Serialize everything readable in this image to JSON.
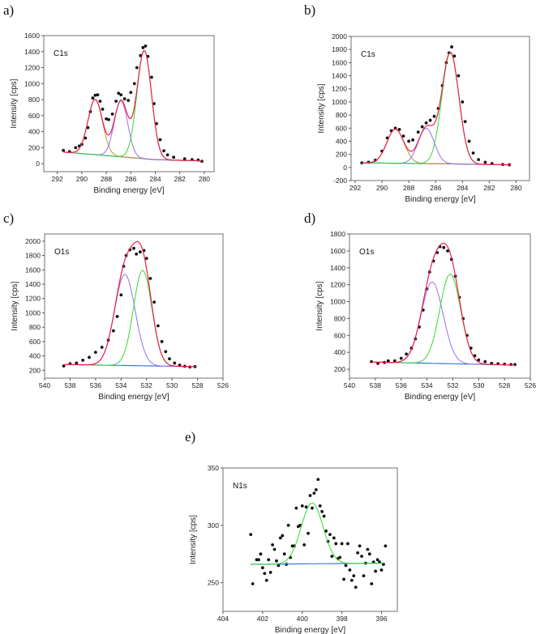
{
  "colors": {
    "envelope": "#e8204a",
    "baseline": "#3a7fd0",
    "points": "#111111",
    "frame": "#888888"
  },
  "chart_data": [
    {
      "type": "line+scatter",
      "panel_label": "a)",
      "region": "C1s",
      "xlabel": "Binding energy [eV]",
      "ylabel": "Intensity [cps]",
      "xlim": [
        293.1,
        279.2
      ],
      "ylim": [
        -100,
        1600
      ],
      "x_ticks": [
        292,
        290,
        288,
        286,
        284,
        282,
        280
      ],
      "y_ticks": [
        0,
        200,
        400,
        600,
        800,
        1000,
        1200,
        1400,
        1600
      ],
      "baseline": [
        [
          291.5,
          145
        ],
        [
          284,
          50
        ],
        [
          280.2,
          35
        ]
      ],
      "components": [
        {
          "center": 288.9,
          "height": 690,
          "fwhm": 1.4,
          "color": "#c8932a"
        },
        {
          "center": 286.8,
          "height": 700,
          "fwhm": 1.3,
          "color": "#9b6cf0"
        },
        {
          "center": 284.9,
          "height": 1350,
          "fwhm": 1.4,
          "color": "#35d935"
        }
      ],
      "envelope": true,
      "points": [
        [
          291.5,
          165
        ],
        [
          291,
          150
        ],
        [
          290.5,
          200
        ],
        [
          290.2,
          220
        ],
        [
          290,
          240
        ],
        [
          289.7,
          320
        ],
        [
          289.5,
          450
        ],
        [
          289.3,
          650
        ],
        [
          289.1,
          820
        ],
        [
          288.9,
          855
        ],
        [
          288.7,
          860
        ],
        [
          288.5,
          780
        ],
        [
          288.3,
          680
        ],
        [
          288,
          560
        ],
        [
          287.8,
          550
        ],
        [
          287.5,
          620
        ],
        [
          287.2,
          780
        ],
        [
          287,
          880
        ],
        [
          286.8,
          860
        ],
        [
          286.5,
          810
        ],
        [
          286.2,
          790
        ],
        [
          286,
          890
        ],
        [
          285.7,
          1000
        ],
        [
          285.5,
          1200
        ],
        [
          285.2,
          1350
        ],
        [
          285,
          1450
        ],
        [
          284.8,
          1470
        ],
        [
          284.6,
          1340
        ],
        [
          284.3,
          1080
        ],
        [
          284.1,
          750
        ],
        [
          283.9,
          500
        ],
        [
          283.6,
          300
        ],
        [
          283.3,
          160
        ],
        [
          283,
          110
        ],
        [
          282.5,
          80
        ],
        [
          281.6,
          60
        ],
        [
          281,
          50
        ],
        [
          280.5,
          45
        ],
        [
          280.2,
          30
        ]
      ]
    },
    {
      "type": "line+scatter",
      "panel_label": "b)",
      "region": "C1s",
      "xlabel": "Binding energy [eV]",
      "ylabel": "Intensity [cps]",
      "xlim": [
        292.3,
        279.0
      ],
      "ylim": [
        -200,
        2000
      ],
      "x_ticks": [
        292,
        290,
        288,
        286,
        284,
        282,
        280
      ],
      "y_ticks": [
        -200,
        0,
        200,
        400,
        600,
        800,
        1000,
        1200,
        1400,
        1600,
        1800,
        2000
      ],
      "baseline": [
        [
          291.5,
          70
        ],
        [
          285,
          55
        ],
        [
          280.4,
          40
        ]
      ],
      "components": [
        {
          "center": 289.0,
          "height": 520,
          "fwhm": 1.5,
          "color": "#c8932a"
        },
        {
          "center": 286.7,
          "height": 540,
          "fwhm": 1.4,
          "color": "#9b6cf0"
        },
        {
          "center": 284.9,
          "height": 1700,
          "fwhm": 1.5,
          "color": "#35d935"
        }
      ],
      "envelope": true,
      "points": [
        [
          291.5,
          70
        ],
        [
          291,
          80
        ],
        [
          290.5,
          110
        ],
        [
          290,
          250
        ],
        [
          289.6,
          450
        ],
        [
          289.3,
          560
        ],
        [
          289,
          600
        ],
        [
          288.7,
          580
        ],
        [
          288.4,
          480
        ],
        [
          288,
          400
        ],
        [
          287.7,
          420
        ],
        [
          287.3,
          540
        ],
        [
          287,
          620
        ],
        [
          286.7,
          680
        ],
        [
          286.4,
          720
        ],
        [
          286.1,
          780
        ],
        [
          285.8,
          900
        ],
        [
          285.5,
          1250
        ],
        [
          285.2,
          1600
        ],
        [
          285,
          1750
        ],
        [
          284.8,
          1840
        ],
        [
          284.6,
          1700
        ],
        [
          284.3,
          1400
        ],
        [
          284,
          1000
        ],
        [
          283.8,
          700
        ],
        [
          283.5,
          400
        ],
        [
          283.2,
          220
        ],
        [
          282.8,
          120
        ],
        [
          282.3,
          80
        ],
        [
          281.8,
          60
        ],
        [
          281,
          45
        ],
        [
          280.5,
          40
        ]
      ]
    },
    {
      "type": "line+scatter",
      "panel_label": "c)",
      "region": "O1s",
      "xlabel": "Binding energy [eV]",
      "ylabel": "Intensity [cps]",
      "xlim": [
        540,
        526
      ],
      "ylim": [
        90,
        2100
      ],
      "x_ticks": [
        540,
        538,
        536,
        534,
        532,
        530,
        528,
        526
      ],
      "y_ticks": [
        200,
        400,
        600,
        800,
        1000,
        1200,
        1400,
        1600,
        1800,
        2000
      ],
      "baseline": [
        [
          538.5,
          280
        ],
        [
          528.2,
          250
        ]
      ],
      "components": [
        {
          "center": 533.7,
          "height": 1270,
          "fwhm": 1.9,
          "color": "#9b6cf0"
        },
        {
          "center": 532.3,
          "height": 1330,
          "fwhm": 1.7,
          "color": "#35d935"
        }
      ],
      "envelope": true,
      "points": [
        [
          538.5,
          260
        ],
        [
          538,
          290
        ],
        [
          537.5,
          300
        ],
        [
          537,
          340
        ],
        [
          536.5,
          380
        ],
        [
          536,
          450
        ],
        [
          535.5,
          520
        ],
        [
          535,
          620
        ],
        [
          534.6,
          750
        ],
        [
          534.3,
          950
        ],
        [
          534,
          1250
        ],
        [
          533.8,
          1650
        ],
        [
          533.6,
          1800
        ],
        [
          533.3,
          1880
        ],
        [
          533,
          1900
        ],
        [
          532.8,
          1820
        ],
        [
          532.5,
          1850
        ],
        [
          532.2,
          1870
        ],
        [
          532,
          1760
        ],
        [
          531.7,
          1480
        ],
        [
          531.4,
          1150
        ],
        [
          531.1,
          820
        ],
        [
          530.8,
          600
        ],
        [
          530.5,
          460
        ],
        [
          530.2,
          360
        ],
        [
          529.8,
          300
        ],
        [
          529.4,
          270
        ],
        [
          529,
          255
        ],
        [
          528.6,
          245
        ],
        [
          528.2,
          250
        ]
      ]
    },
    {
      "type": "line+scatter",
      "panel_label": "d)",
      "region": "O1s",
      "xlabel": "Binding energy [eV]",
      "ylabel": "Intensity [cps]",
      "xlim": [
        540,
        526
      ],
      "ylim": [
        95,
        1800
      ],
      "x_ticks": [
        540,
        538,
        536,
        534,
        532,
        530,
        528,
        526
      ],
      "y_ticks": [
        200,
        400,
        600,
        800,
        1000,
        1200,
        1400,
        1600,
        1800
      ],
      "baseline": [
        [
          538.3,
          285
        ],
        [
          527.2,
          250
        ]
      ],
      "components": [
        {
          "center": 533.6,
          "height": 960,
          "fwhm": 2.0,
          "color": "#9b6cf0"
        },
        {
          "center": 532.2,
          "height": 1060,
          "fwhm": 1.9,
          "color": "#35d935"
        }
      ],
      "envelope": true,
      "points": [
        [
          538.3,
          290
        ],
        [
          537.8,
          270
        ],
        [
          537.3,
          280
        ],
        [
          537,
          300
        ],
        [
          536.5,
          300
        ],
        [
          536,
          330
        ],
        [
          535.6,
          380
        ],
        [
          535.2,
          450
        ],
        [
          534.9,
          560
        ],
        [
          534.6,
          700
        ],
        [
          534.3,
          900
        ],
        [
          534,
          1150
        ],
        [
          533.8,
          1350
        ],
        [
          533.5,
          1480
        ],
        [
          533.2,
          1580
        ],
        [
          533,
          1650
        ],
        [
          532.7,
          1640
        ],
        [
          532.4,
          1600
        ],
        [
          532.1,
          1500
        ],
        [
          531.8,
          1300
        ],
        [
          531.5,
          1050
        ],
        [
          531.2,
          800
        ],
        [
          530.9,
          600
        ],
        [
          530.6,
          450
        ],
        [
          530.3,
          360
        ],
        [
          530,
          310
        ],
        [
          529.5,
          290
        ],
        [
          529,
          270
        ],
        [
          528.5,
          265
        ],
        [
          528,
          260
        ],
        [
          527.5,
          255
        ],
        [
          527.2,
          255
        ]
      ]
    },
    {
      "type": "line+scatter",
      "panel_label": "e)",
      "region": "N1s",
      "xlabel": "Binding energy [eV]",
      "ylabel": "Intensity [cps]",
      "xlim": [
        404,
        395.2
      ],
      "ylim": [
        225,
        350
      ],
      "x_ticks": [
        404,
        402,
        400,
        398,
        396
      ],
      "y_ticks": [
        250,
        300,
        350
      ],
      "baseline": [
        [
          402.6,
          266
        ],
        [
          395.9,
          267
        ]
      ],
      "components": [
        {
          "center": 399.5,
          "height": 53,
          "fwhm": 1.3,
          "color": "#35d935"
        }
      ],
      "envelope": false,
      "points": [
        [
          402.6,
          292
        ],
        [
          402.5,
          249
        ],
        [
          402.3,
          270
        ],
        [
          402.2,
          270
        ],
        [
          402.1,
          275
        ],
        [
          402,
          263
        ],
        [
          401.9,
          258
        ],
        [
          401.8,
          252
        ],
        [
          401.7,
          270
        ],
        [
          401.6,
          259
        ],
        [
          401.5,
          283
        ],
        [
          401.4,
          279
        ],
        [
          401.3,
          269
        ],
        [
          401.2,
          265
        ],
        [
          401.1,
          289
        ],
        [
          401,
          291
        ],
        [
          400.9,
          275
        ],
        [
          400.8,
          266
        ],
        [
          400.7,
          300
        ],
        [
          400.6,
          272
        ],
        [
          400.5,
          282
        ],
        [
          400.4,
          282
        ],
        [
          400.3,
          315
        ],
        [
          400.2,
          299
        ],
        [
          400.1,
          300
        ],
        [
          400,
          317
        ],
        [
          399.9,
          283
        ],
        [
          399.8,
          316
        ],
        [
          399.7,
          293
        ],
        [
          399.6,
          326
        ],
        [
          399.5,
          315
        ],
        [
          399.4,
          328
        ],
        [
          399.3,
          331
        ],
        [
          399.2,
          340
        ],
        [
          399.1,
          317
        ],
        [
          399,
          312
        ],
        [
          398.9,
          308
        ],
        [
          398.8,
          295
        ],
        [
          398.7,
          286
        ],
        [
          398.6,
          292
        ],
        [
          398.5,
          273
        ],
        [
          398.4,
          289
        ],
        [
          398.3,
          284
        ],
        [
          398.2,
          271
        ],
        [
          398.1,
          272
        ],
        [
          398,
          284
        ],
        [
          397.9,
          253
        ],
        [
          397.8,
          265
        ],
        [
          397.7,
          284
        ],
        [
          397.6,
          261
        ],
        [
          397.5,
          252
        ],
        [
          397.4,
          256
        ],
        [
          397.3,
          246
        ],
        [
          397.2,
          276
        ],
        [
          397.1,
          282
        ],
        [
          397,
          273
        ],
        [
          396.9,
          256
        ],
        [
          396.8,
          267
        ],
        [
          396.7,
          279
        ],
        [
          396.6,
          275
        ],
        [
          396.5,
          249
        ],
        [
          396.4,
          268
        ],
        [
          396.3,
          260
        ],
        [
          396.2,
          270
        ],
        [
          396.1,
          268
        ],
        [
          396,
          261
        ],
        [
          395.9,
          266
        ],
        [
          395.8,
          282
        ]
      ]
    }
  ]
}
